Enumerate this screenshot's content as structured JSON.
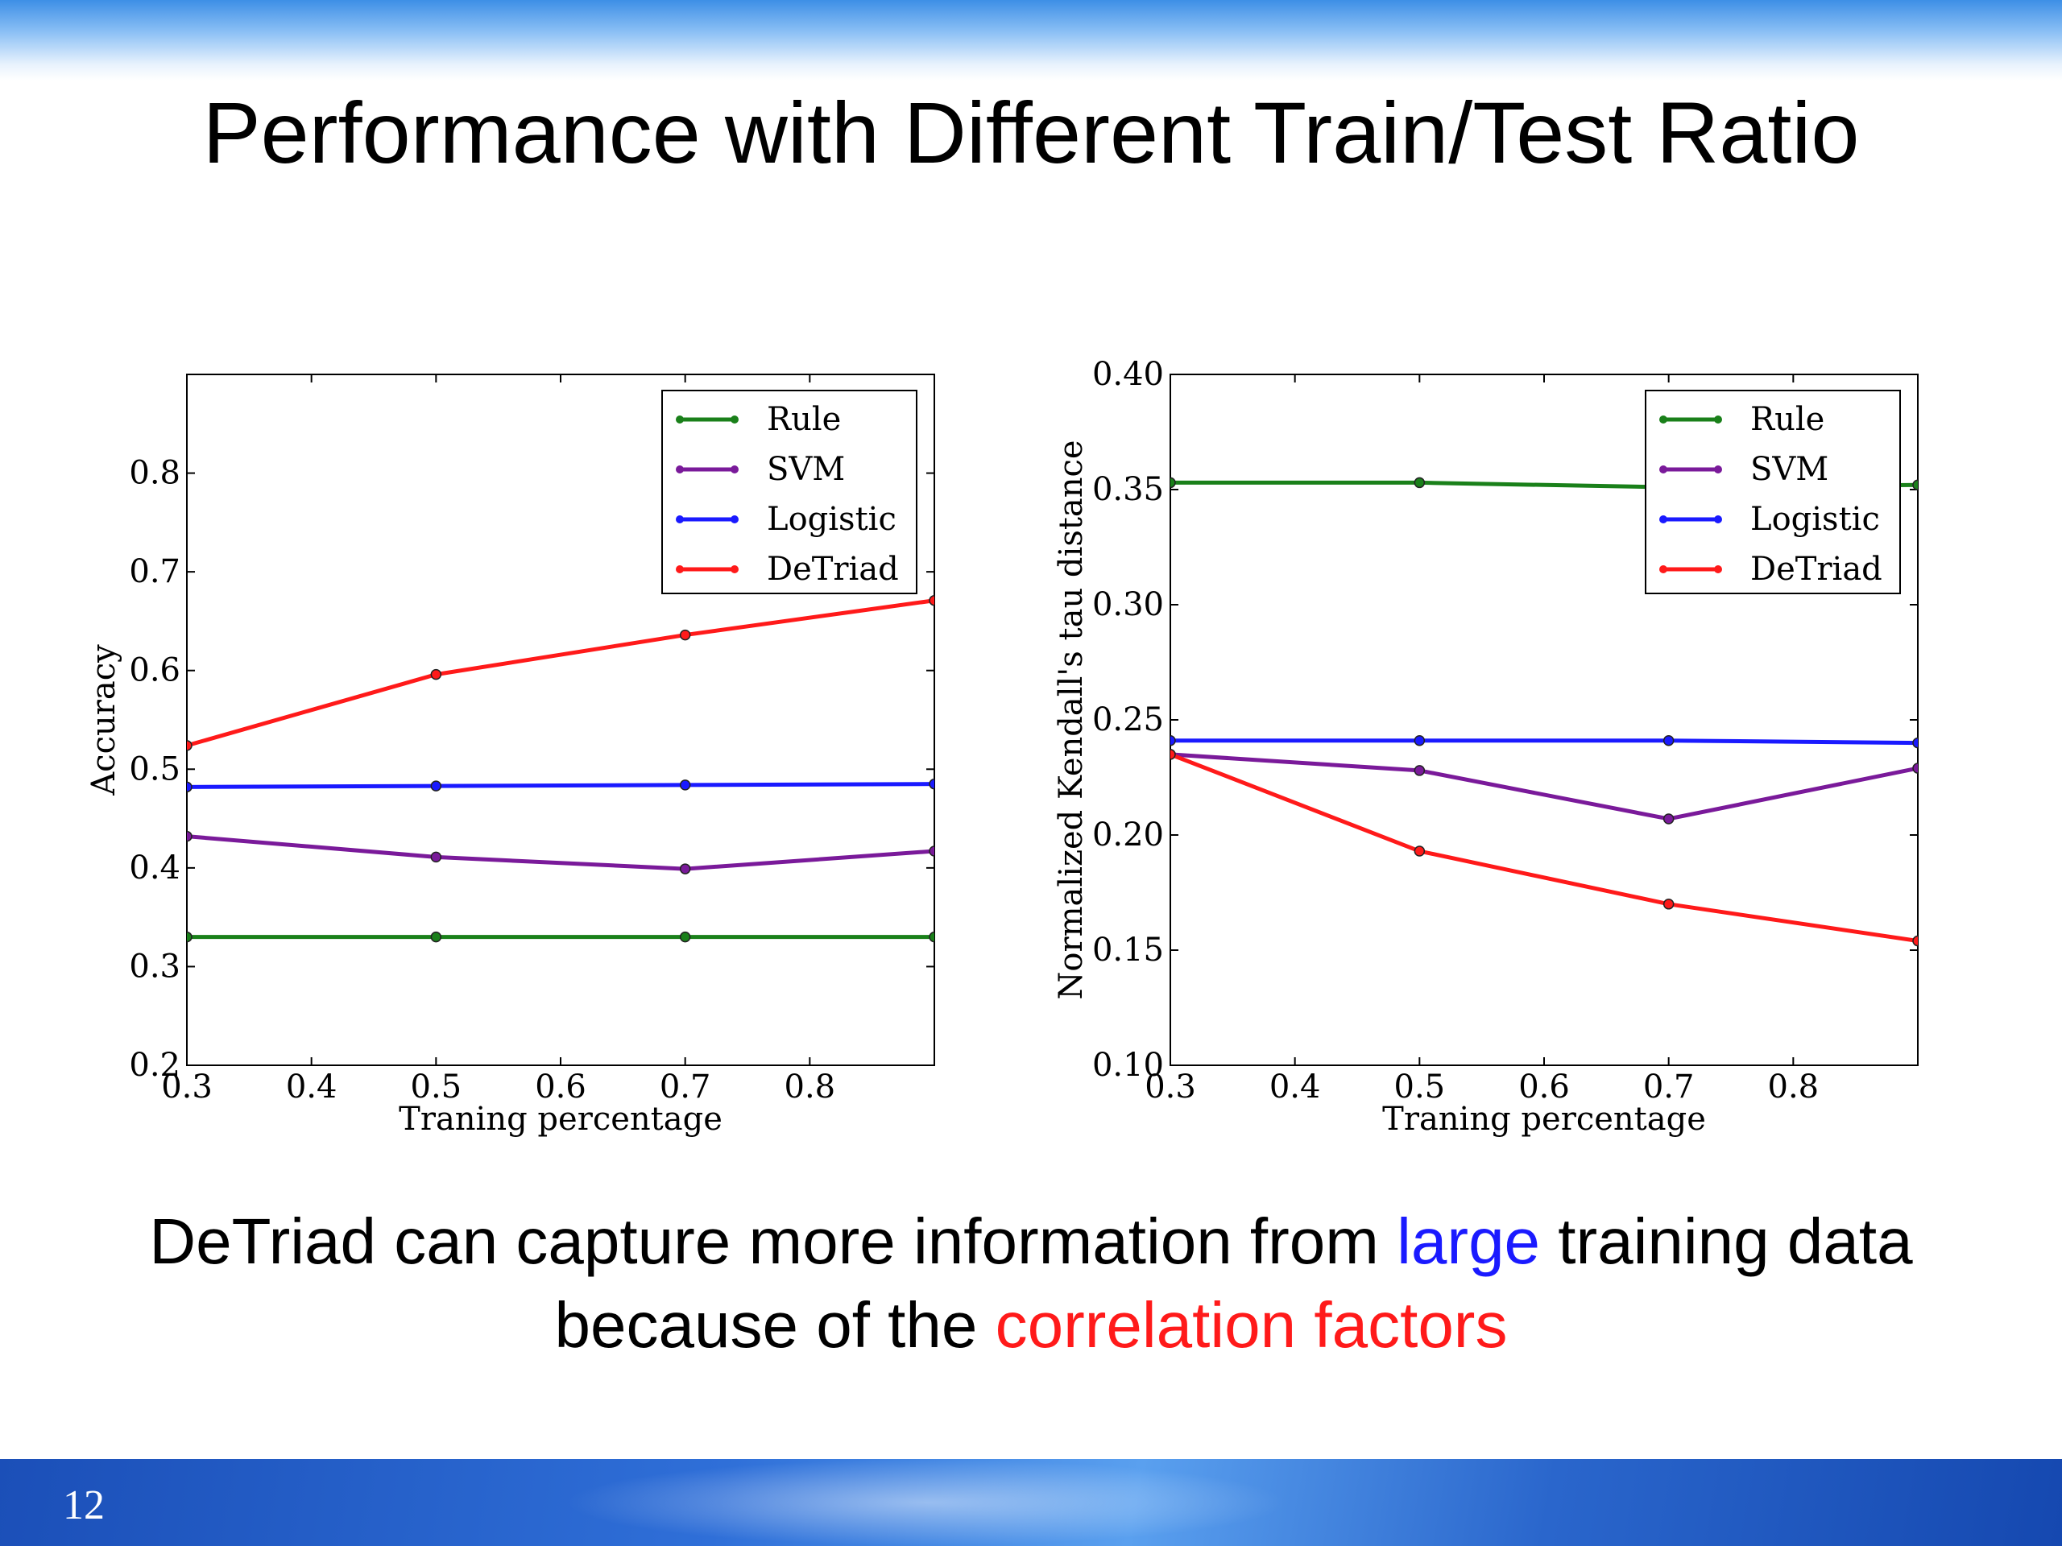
{
  "slide": {
    "title": "Performance with Different Train/Test Ratio",
    "caption_line1_a": "DeTriad can capture more information from ",
    "caption_line1_b": "large",
    "caption_line1_c": " training data",
    "caption_line2_a": "because of the ",
    "caption_line2_b": "correlation factors",
    "page_number": "12"
  },
  "colors": {
    "Rule": "#1a801a",
    "SVM": "#7a1a9a",
    "Logistic": "#1a1aff",
    "DeTriad": "#ff1a1a",
    "caption_highlight_blue": "#1a1aff",
    "caption_highlight_red": "#ff1a1a"
  },
  "chart_data": [
    {
      "type": "line",
      "xlabel": "Traning percentage",
      "ylabel": "Accuracy",
      "xlim": [
        0.3,
        0.9
      ],
      "ylim": [
        0.2,
        0.9
      ],
      "xticks": [
        0.3,
        0.4,
        0.5,
        0.6,
        0.7,
        0.8
      ],
      "xtick_labels": [
        "0.3",
        "0.4",
        "0.5",
        "0.6",
        "0.7",
        "0.8"
      ],
      "yticks": [
        0.2,
        0.3,
        0.4,
        0.5,
        0.6,
        0.7,
        0.8
      ],
      "ytick_labels": [
        "0.2",
        "0.3",
        "0.4",
        "0.5",
        "0.6",
        "0.7",
        "0.8"
      ],
      "legend_position": "top-right",
      "x": [
        0.3,
        0.5,
        0.7,
        0.9
      ],
      "series": [
        {
          "name": "Rule",
          "values": [
            0.33,
            0.33,
            0.33,
            0.33
          ]
        },
        {
          "name": "SVM",
          "values": [
            0.432,
            0.411,
            0.399,
            0.417
          ]
        },
        {
          "name": "Logistic",
          "values": [
            0.482,
            0.483,
            0.484,
            0.485
          ]
        },
        {
          "name": "DeTriad",
          "values": [
            0.524,
            0.596,
            0.636,
            0.671
          ]
        }
      ]
    },
    {
      "type": "line",
      "xlabel": "Traning percentage",
      "ylabel": "Normalized Kendall's tau distance",
      "xlim": [
        0.3,
        0.9
      ],
      "ylim": [
        0.1,
        0.4
      ],
      "xticks": [
        0.3,
        0.4,
        0.5,
        0.6,
        0.7,
        0.8
      ],
      "xtick_labels": [
        "0.3",
        "0.4",
        "0.5",
        "0.6",
        "0.7",
        "0.8"
      ],
      "yticks": [
        0.1,
        0.15,
        0.2,
        0.25,
        0.3,
        0.35,
        0.4
      ],
      "ytick_labels": [
        "0.10",
        "0.15",
        "0.20",
        "0.25",
        "0.30",
        "0.35",
        "0.40"
      ],
      "legend_position": "top-right",
      "x": [
        0.3,
        0.5,
        0.7,
        0.9
      ],
      "series": [
        {
          "name": "Rule",
          "values": [
            0.353,
            0.353,
            0.351,
            0.352
          ]
        },
        {
          "name": "SVM",
          "values": [
            0.235,
            0.228,
            0.207,
            0.229
          ]
        },
        {
          "name": "Logistic",
          "values": [
            0.241,
            0.241,
            0.241,
            0.24
          ]
        },
        {
          "name": "DeTriad",
          "values": [
            0.235,
            0.193,
            0.17,
            0.154
          ]
        }
      ]
    }
  ]
}
